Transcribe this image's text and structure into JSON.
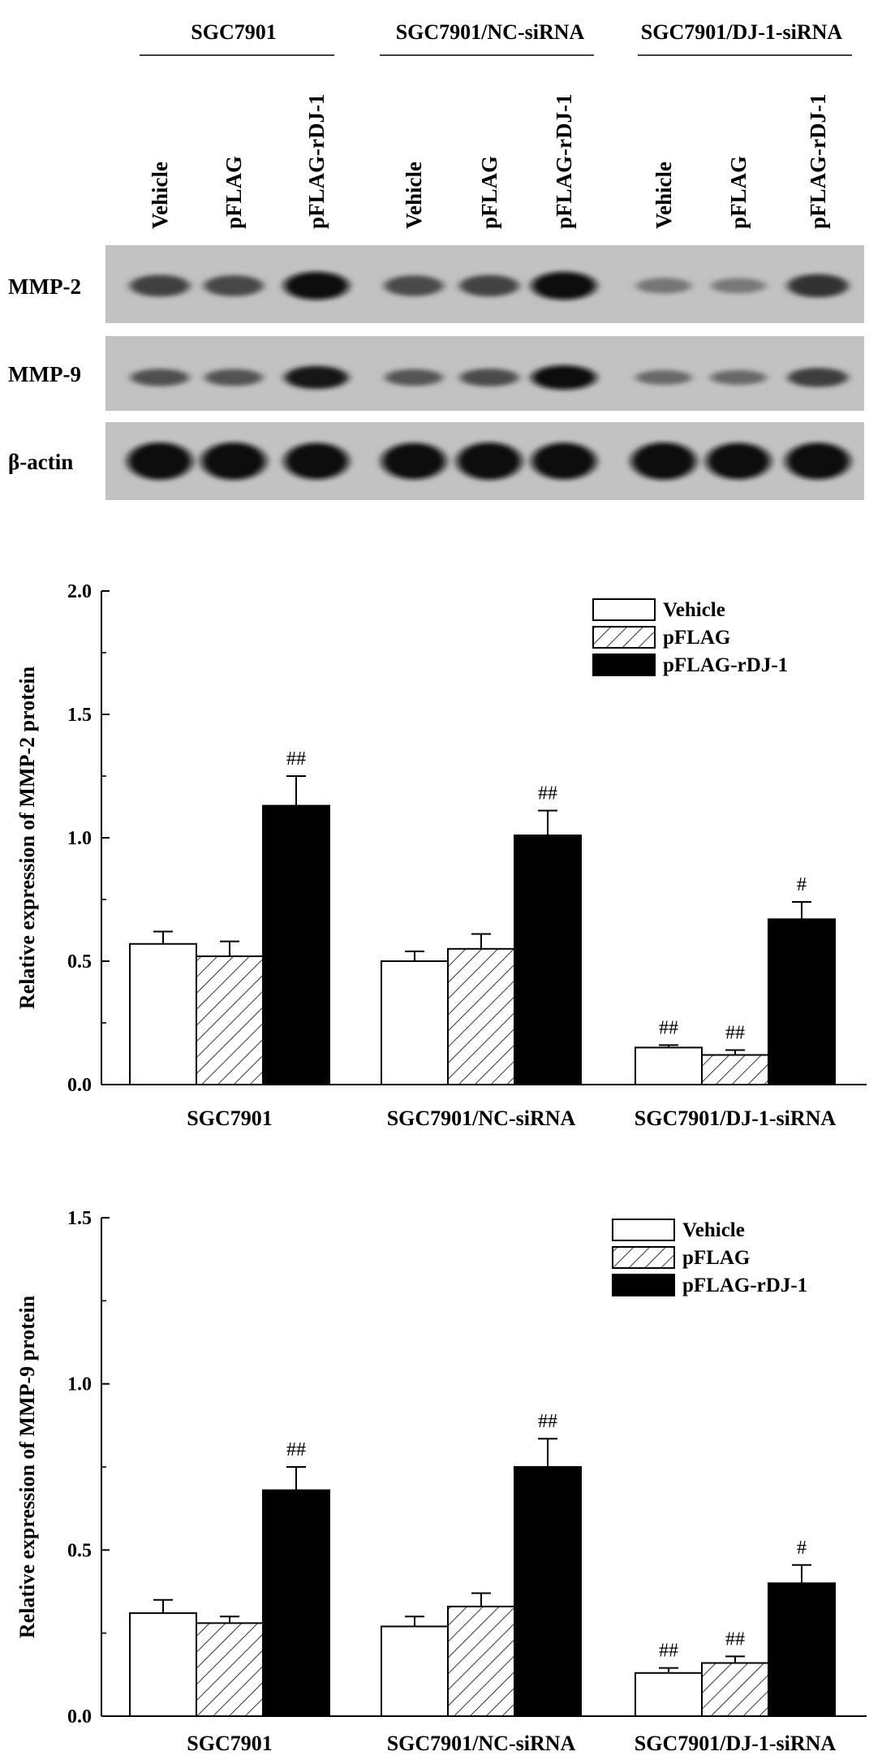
{
  "blot": {
    "groups": [
      "SGC7901",
      "SGC7901/NC-siRNA",
      "SGC7901/DJ-1-siRNA"
    ],
    "lanes": [
      "Vehicle",
      "pFLAG",
      "pFLAG-rDJ-1",
      "Vehicle",
      "pFLAG",
      "pFLAG-rDJ-1",
      "Vehicle",
      "pFLAG",
      "pFLAG-rDJ-1"
    ],
    "rows": [
      "MMP-2",
      "MMP-9",
      "β-actin"
    ],
    "band_intensity": [
      [
        0.57,
        0.52,
        1.0,
        0.5,
        0.55,
        1.0,
        0.15,
        0.12,
        0.67
      ],
      [
        0.45,
        0.42,
        0.9,
        0.4,
        0.48,
        1.0,
        0.25,
        0.25,
        0.6
      ],
      [
        1.0,
        1.0,
        0.95,
        0.95,
        1.0,
        0.97,
        1.0,
        0.95,
        0.97
      ]
    ]
  },
  "chart_data": [
    {
      "type": "bar",
      "categories": [
        "SGC7901",
        "SGC7901/NC-siRNA",
        "SGC7901/DJ-1-siRNA"
      ],
      "ylabel": "Relative expression of MMP-2 protein",
      "ylim": [
        0,
        2.0
      ],
      "yticks": [
        "0.0",
        "0.5",
        "1.0",
        "1.5",
        "2.0"
      ],
      "legend_position": "top-right",
      "series": [
        {
          "name": "Vehicle",
          "fill": "white",
          "values": [
            0.57,
            0.5,
            0.15
          ],
          "errors": [
            0.05,
            0.04,
            0.01
          ],
          "sig": [
            "",
            "",
            "##"
          ]
        },
        {
          "name": "pFLAG",
          "fill": "hatched",
          "values": [
            0.52,
            0.55,
            0.12
          ],
          "errors": [
            0.06,
            0.06,
            0.02
          ],
          "sig": [
            "",
            "",
            "##"
          ]
        },
        {
          "name": "pFLAG-rDJ-1",
          "fill": "black",
          "values": [
            1.13,
            1.01,
            0.67
          ],
          "errors": [
            0.12,
            0.1,
            0.07
          ],
          "sig": [
            "##",
            "##",
            "#"
          ]
        }
      ]
    },
    {
      "type": "bar",
      "categories": [
        "SGC7901",
        "SGC7901/NC-siRNA",
        "SGC7901/DJ-1-siRNA"
      ],
      "ylabel": "Relative expression of MMP-9 protein",
      "ylim": [
        0,
        1.5
      ],
      "yticks": [
        "0.0",
        "0.5",
        "1.0",
        "1.5"
      ],
      "legend_position": "top-right",
      "series": [
        {
          "name": "Vehicle",
          "fill": "white",
          "values": [
            0.31,
            0.27,
            0.13
          ],
          "errors": [
            0.04,
            0.03,
            0.015
          ],
          "sig": [
            "",
            "",
            "##"
          ]
        },
        {
          "name": "pFLAG",
          "fill": "hatched",
          "values": [
            0.28,
            0.33,
            0.16
          ],
          "errors": [
            0.02,
            0.04,
            0.02
          ],
          "sig": [
            "",
            "",
            "##"
          ]
        },
        {
          "name": "pFLAG-rDJ-1",
          "fill": "black",
          "values": [
            0.68,
            0.75,
            0.4
          ],
          "errors": [
            0.07,
            0.085,
            0.055
          ],
          "sig": [
            "##",
            "##",
            "#"
          ]
        }
      ]
    }
  ]
}
